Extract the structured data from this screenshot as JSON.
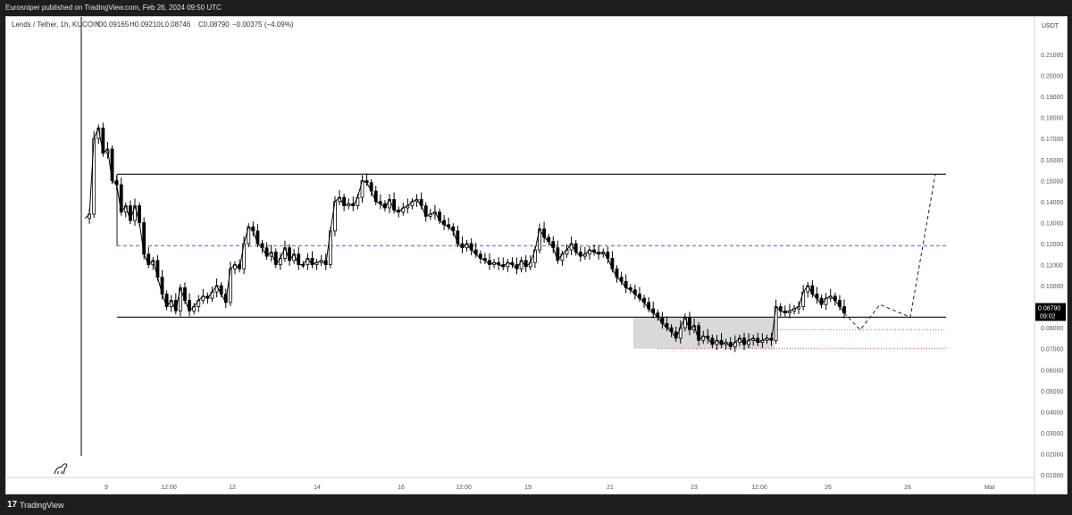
{
  "header": {
    "published_line": "Eurosniper published on TradingView.com, Feb 26, 2024 09:50 UTC"
  },
  "legend": {
    "symbol": "Lends / Tether, 1h, KUCOIN",
    "open": "O0.09165",
    "high": "H0.09210",
    "low": "L0.08746",
    "close": "C0.08790",
    "change": "−0.00375 (−4.09%)"
  },
  "price_axis": {
    "currency": "USDT",
    "last_price": "0.08790",
    "countdown": "09:02"
  },
  "footer": {
    "brand": "TradingView"
  },
  "colors": {
    "candles": "#000000",
    "dashed_level": "#2962ff",
    "box_fill": "#d9d9d9",
    "last_price_badge": "#000000"
  },
  "chart_data": {
    "type": "line",
    "title": "Lends / Tether, 1h, KUCOIN",
    "y_ticks": [
      "0.21000",
      "0.20000",
      "0.19000",
      "0.18000",
      "0.17000",
      "0.16000",
      "0.15000",
      "0.14000",
      "0.13000",
      "0.12000",
      "0.11000",
      "0.10000",
      "0.09000",
      "0.08000",
      "0.07000",
      "0.06000",
      "0.05000",
      "0.04000",
      "0.03000",
      "0.02000",
      "0.01000"
    ],
    "x_ticks": [
      "9",
      "12:00",
      "12",
      "14",
      "16",
      "12:00",
      "19",
      "21",
      "23",
      "12:00",
      "26",
      "28",
      "Mar"
    ],
    "ylim": [
      0.01,
      0.21
    ],
    "xlim": [
      "2024-02-08T12:00",
      "2024-03-01T02:00"
    ],
    "grid": false,
    "series": [
      {
        "values": [
          [
            "2024-02-08T18:00",
            0.132
          ],
          [
            "2024-02-08T20:00",
            0.134
          ],
          [
            "2024-02-08T22:00",
            0.17
          ],
          [
            "2024-02-09T00:00",
            0.175
          ],
          [
            "2024-02-09T01:00",
            0.163
          ],
          [
            "2024-02-09T02:00",
            0.165
          ],
          [
            "2024-02-09T04:00",
            0.15
          ],
          [
            "2024-02-09T06:00",
            0.148
          ],
          [
            "2024-02-09T07:00",
            0.135
          ],
          [
            "2024-02-09T09:00",
            0.138
          ],
          [
            "2024-02-09T10:00",
            0.131
          ],
          [
            "2024-02-09T12:00",
            0.138
          ],
          [
            "2024-02-09T14:00",
            0.13
          ],
          [
            "2024-02-09T15:00",
            0.115
          ],
          [
            "2024-02-09T17:00",
            0.11
          ],
          [
            "2024-02-09T19:00",
            0.112
          ],
          [
            "2024-02-09T20:00",
            0.104
          ],
          [
            "2024-02-09T22:00",
            0.096
          ],
          [
            "2024-02-10T00:00",
            0.09
          ],
          [
            "2024-02-10T01:00",
            0.093
          ],
          [
            "2024-02-10T03:00",
            0.088
          ],
          [
            "2024-02-10T05:00",
            0.099
          ],
          [
            "2024-02-10T07:00",
            0.093
          ],
          [
            "2024-02-10T08:00",
            0.088
          ],
          [
            "2024-02-10T10:00",
            0.09
          ],
          [
            "2024-02-10T13:00",
            0.093
          ],
          [
            "2024-02-10T15:00",
            0.095
          ],
          [
            "2024-02-10T18:00",
            0.094
          ],
          [
            "2024-02-10T20:00",
            0.097
          ],
          [
            "2024-02-10T23:00",
            0.1
          ],
          [
            "2024-02-11T01:00",
            0.096
          ],
          [
            "2024-02-11T03:00",
            0.092
          ],
          [
            "2024-02-11T06:00",
            0.108
          ],
          [
            "2024-02-11T08:00",
            0.11
          ],
          [
            "2024-02-11T10:00",
            0.108
          ],
          [
            "2024-02-11T13:00",
            0.12
          ],
          [
            "2024-02-11T15:00",
            0.128
          ],
          [
            "2024-02-11T17:00",
            0.126
          ],
          [
            "2024-02-11T20:00",
            0.12
          ],
          [
            "2024-02-11T22:00",
            0.118
          ],
          [
            "2024-02-12T01:00",
            0.114
          ],
          [
            "2024-02-12T03:00",
            0.116
          ],
          [
            "2024-02-12T05:00",
            0.11
          ],
          [
            "2024-02-12T08:00",
            0.113
          ],
          [
            "2024-02-12T10:00",
            0.118
          ],
          [
            "2024-02-12T12:00",
            0.112
          ],
          [
            "2024-02-12T15:00",
            0.115
          ],
          [
            "2024-02-12T17:00",
            0.11
          ],
          [
            "2024-02-12T20:00",
            0.11
          ],
          [
            "2024-02-12T22:00",
            0.113
          ],
          [
            "2024-02-13T01:00",
            0.11
          ],
          [
            "2024-02-13T03:00",
            0.111
          ],
          [
            "2024-02-13T05:00",
            0.112
          ],
          [
            "2024-02-13T08:00",
            0.11
          ],
          [
            "2024-02-13T10:00",
            0.126
          ],
          [
            "2024-02-13T12:00",
            0.14
          ],
          [
            "2024-02-13T15:00",
            0.142
          ],
          [
            "2024-02-13T17:00",
            0.138
          ],
          [
            "2024-02-13T19:00",
            0.139
          ],
          [
            "2024-02-13T22:00",
            0.138
          ],
          [
            "2024-02-14T00:00",
            0.142
          ],
          [
            "2024-02-14T03:00",
            0.15
          ],
          [
            "2024-02-14T05:00",
            0.149
          ],
          [
            "2024-02-14T07:00",
            0.145
          ],
          [
            "2024-02-14T10:00",
            0.14
          ],
          [
            "2024-02-14T12:00",
            0.139
          ],
          [
            "2024-02-14T14:00",
            0.137
          ],
          [
            "2024-02-14T17:00",
            0.141
          ],
          [
            "2024-02-14T19:00",
            0.136
          ],
          [
            "2024-02-14T22:00",
            0.135
          ],
          [
            "2024-02-15T00:00",
            0.137
          ],
          [
            "2024-02-15T02:00",
            0.138
          ],
          [
            "2024-02-15T05:00",
            0.14
          ],
          [
            "2024-02-15T07:00",
            0.141
          ],
          [
            "2024-02-15T09:00",
            0.138
          ],
          [
            "2024-02-15T12:00",
            0.133
          ],
          [
            "2024-02-15T14:00",
            0.134
          ],
          [
            "2024-02-15T16:00",
            0.135
          ],
          [
            "2024-02-15T19:00",
            0.131
          ],
          [
            "2024-02-15T21:00",
            0.129
          ],
          [
            "2024-02-16T00:00",
            0.128
          ],
          [
            "2024-02-16T02:00",
            0.126
          ],
          [
            "2024-02-16T04:00",
            0.12
          ],
          [
            "2024-02-16T07:00",
            0.118
          ],
          [
            "2024-02-16T09:00",
            0.12
          ],
          [
            "2024-02-16T11:00",
            0.117
          ],
          [
            "2024-02-16T14:00",
            0.115
          ],
          [
            "2024-02-16T16:00",
            0.113
          ],
          [
            "2024-02-16T18:00",
            0.112
          ],
          [
            "2024-02-16T21:00",
            0.11
          ],
          [
            "2024-02-16T23:00",
            0.111
          ],
          [
            "2024-02-17T02:00",
            0.11
          ],
          [
            "2024-02-17T04:00",
            0.109
          ],
          [
            "2024-02-17T06:00",
            0.111
          ],
          [
            "2024-02-17T09:00",
            0.11
          ],
          [
            "2024-02-17T11:00",
            0.108
          ],
          [
            "2024-02-17T13:00",
            0.112
          ],
          [
            "2024-02-17T16:00",
            0.109
          ],
          [
            "2024-02-17T18:00",
            0.111
          ],
          [
            "2024-02-17T20:00",
            0.117
          ],
          [
            "2024-02-17T23:00",
            0.127
          ],
          [
            "2024-02-18T01:00",
            0.123
          ],
          [
            "2024-02-18T04:00",
            0.121
          ],
          [
            "2024-02-18T06:00",
            0.118
          ],
          [
            "2024-02-18T08:00",
            0.112
          ],
          [
            "2024-02-18T11:00",
            0.115
          ],
          [
            "2024-02-18T13:00",
            0.117
          ],
          [
            "2024-02-18T15:00",
            0.12
          ],
          [
            "2024-02-18T18:00",
            0.116
          ],
          [
            "2024-02-18T20:00",
            0.114
          ],
          [
            "2024-02-18T22:00",
            0.115
          ],
          [
            "2024-02-19T01:00",
            0.117
          ],
          [
            "2024-02-19T03:00",
            0.116
          ],
          [
            "2024-02-19T06:00",
            0.115
          ],
          [
            "2024-02-19T08:00",
            0.116
          ],
          [
            "2024-02-19T10:00",
            0.113
          ],
          [
            "2024-02-19T13:00",
            0.108
          ],
          [
            "2024-02-19T15:00",
            0.104
          ],
          [
            "2024-02-19T17:00",
            0.102
          ],
          [
            "2024-02-19T20:00",
            0.099
          ],
          [
            "2024-02-19T22:00",
            0.098
          ],
          [
            "2024-02-20T00:00",
            0.096
          ],
          [
            "2024-02-20T03:00",
            0.094
          ],
          [
            "2024-02-20T05:00",
            0.092
          ],
          [
            "2024-02-20T08:00",
            0.089
          ],
          [
            "2024-02-20T10:00",
            0.087
          ],
          [
            "2024-02-20T12:00",
            0.085
          ],
          [
            "2024-02-20T15:00",
            0.082
          ],
          [
            "2024-02-20T17:00",
            0.08
          ],
          [
            "2024-02-20T19:00",
            0.078
          ],
          [
            "2024-02-20T22:00",
            0.075
          ],
          [
            "2024-02-21T00:00",
            0.08
          ],
          [
            "2024-02-21T02:00",
            0.085
          ],
          [
            "2024-02-21T05:00",
            0.079
          ],
          [
            "2024-02-21T07:00",
            0.081
          ],
          [
            "2024-02-21T10:00",
            0.074
          ],
          [
            "2024-02-21T12:00",
            0.076
          ],
          [
            "2024-02-21T14:00",
            0.075
          ],
          [
            "2024-02-21T17:00",
            0.072
          ],
          [
            "2024-02-21T19:00",
            0.074
          ],
          [
            "2024-02-21T21:00",
            0.072
          ],
          [
            "2024-02-22T00:00",
            0.073
          ],
          [
            "2024-02-22T02:00",
            0.071
          ],
          [
            "2024-02-22T04:00",
            0.073
          ],
          [
            "2024-02-22T07:00",
            0.075
          ],
          [
            "2024-02-22T09:00",
            0.072
          ],
          [
            "2024-02-22T12:00",
            0.074
          ],
          [
            "2024-02-22T14:00",
            0.075
          ],
          [
            "2024-02-22T16:00",
            0.073
          ],
          [
            "2024-02-22T19:00",
            0.074
          ],
          [
            "2024-02-22T21:00",
            0.075
          ],
          [
            "2024-02-22T23:00",
            0.074
          ],
          [
            "2024-02-23T02:00",
            0.09
          ],
          [
            "2024-02-23T04:00",
            0.088
          ],
          [
            "2024-02-23T06:00",
            0.087
          ],
          [
            "2024-02-23T09:00",
            0.088
          ],
          [
            "2024-02-23T11:00",
            0.089
          ],
          [
            "2024-02-23T14:00",
            0.09
          ],
          [
            "2024-02-23T16:00",
            0.097
          ],
          [
            "2024-02-23T18:00",
            0.1
          ],
          [
            "2024-02-23T21:00",
            0.096
          ],
          [
            "2024-02-23T23:00",
            0.094
          ],
          [
            "2024-02-24T01:00",
            0.091
          ],
          [
            "2024-02-24T04:00",
            0.094
          ],
          [
            "2024-02-24T06:00",
            0.095
          ],
          [
            "2024-02-24T08:00",
            0.093
          ],
          [
            "2024-02-24T11:00",
            0.09
          ],
          [
            "2024-02-24T13:00",
            0.087
          ]
        ]
      }
    ],
    "drawings": {
      "range_upper": 0.153,
      "range_lower": 0.085,
      "dashed_level": 0.119,
      "box": {
        "x_start": "2024-02-20T23:00",
        "x_end": "2024-02-23T04:00",
        "y_low": 0.07,
        "y_high": 0.085
      },
      "dotted_levels": [
        0.079,
        0.07
      ],
      "projection": [
        [
          "2024-02-24T13:00",
          0.087
        ],
        [
          "2024-02-24T23:00",
          0.079
        ],
        [
          "2024-02-25T12:00",
          0.091
        ],
        [
          "2024-02-26T08:00",
          0.085
        ],
        [
          "2024-02-27T06:00",
          0.153
        ]
      ]
    }
  }
}
